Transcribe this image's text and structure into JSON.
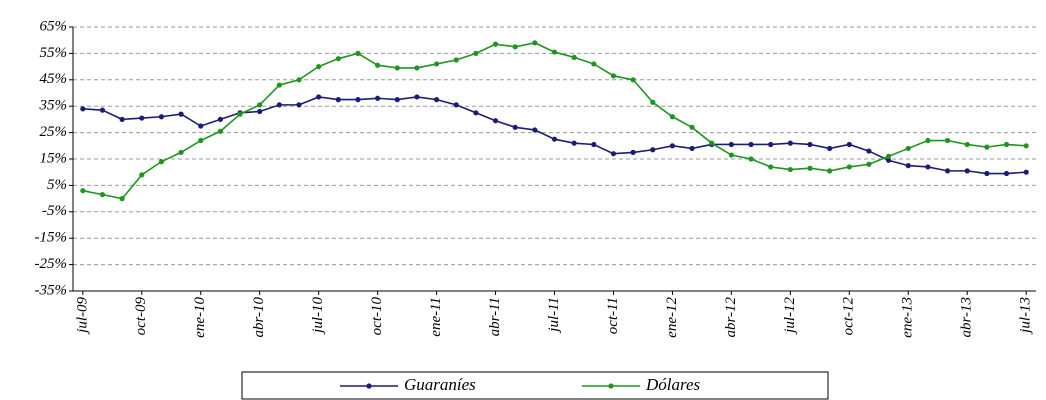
{
  "chart_data": {
    "type": "line",
    "categories": [
      "jul-09",
      null,
      null,
      "oct-09",
      null,
      null,
      "ene-10",
      null,
      null,
      "abr-10",
      null,
      null,
      "jul-10",
      null,
      null,
      "oct-10",
      null,
      null,
      "ene-11",
      null,
      null,
      "abr-11",
      null,
      null,
      "jul-11",
      null,
      null,
      "oct-11",
      null,
      null,
      "ene-12",
      null,
      null,
      "abr-12",
      null,
      null,
      "jul-12",
      null,
      null,
      "oct-12",
      null,
      null,
      "ene-13",
      null,
      null,
      "abr-13",
      null,
      null,
      "jul-13"
    ],
    "series": [
      {
        "name": "Guaraníes",
        "color": "#1c1c78",
        "values": [
          34,
          33.5,
          30,
          30.5,
          31,
          32,
          27.5,
          30,
          32.5,
          33,
          35.5,
          35.5,
          38.5,
          37.5,
          37.5,
          38,
          37.5,
          38.5,
          37.5,
          35.5,
          32.5,
          29.5,
          27,
          26,
          22.5,
          21,
          20.5,
          17,
          17.5,
          18.5,
          20,
          19,
          20.5,
          20.5,
          20.5,
          20.5,
          21,
          20.5,
          19,
          20.5,
          18,
          14.5,
          12.5,
          12,
          10.5,
          10.5,
          9.5,
          9.5,
          10
        ]
      },
      {
        "name": "Dólares",
        "color": "#1e951e",
        "values": [
          3,
          1.5,
          0,
          9,
          14,
          17.5,
          22,
          25.5,
          32,
          35.5,
          43,
          45,
          50,
          53,
          55,
          50.5,
          49.5,
          49.5,
          51,
          52.5,
          55,
          58.5,
          57.5,
          59,
          55.5,
          53.5,
          51,
          46.5,
          45,
          36.5,
          31,
          27,
          21,
          16.5,
          15,
          12,
          11,
          11.5,
          10.5,
          12,
          13,
          16,
          19,
          22,
          22,
          20.5,
          19.5,
          20.5,
          20
        ]
      }
    ],
    "ylim": [
      -35,
      65
    ],
    "yticks": [
      {
        "value": -35,
        "label": "-35%"
      },
      {
        "value": -25,
        "label": "-25%"
      },
      {
        "value": -15,
        "label": "-15%"
      },
      {
        "value": -5,
        "label": "-5%"
      },
      {
        "value": 5,
        "label": "5%"
      },
      {
        "value": 15,
        "label": "15%"
      },
      {
        "value": 25,
        "label": "25%"
      },
      {
        "value": 35,
        "label": "35%"
      },
      {
        "value": 45,
        "label": "45%"
      },
      {
        "value": 55,
        "label": "55%"
      },
      {
        "value": 65,
        "label": "65%"
      }
    ],
    "grid": true
  }
}
